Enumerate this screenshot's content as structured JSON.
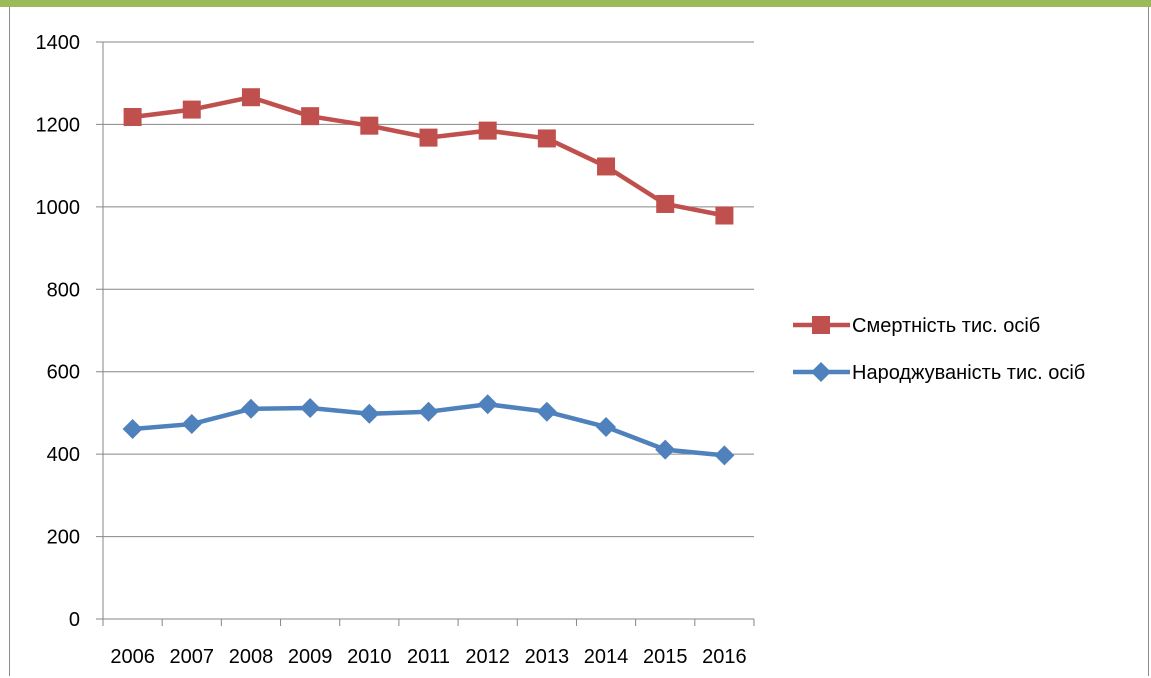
{
  "chart_data": {
    "type": "line",
    "title": "",
    "xlabel": "",
    "ylabel": "",
    "categories": [
      "2006",
      "2007",
      "2008",
      "2009",
      "2010",
      "2011",
      "2012",
      "2013",
      "2014",
      "2015",
      "2016"
    ],
    "ylim": [
      0,
      1400
    ],
    "yticks": [
      "0",
      "200",
      "400",
      "600",
      "800",
      "1000",
      "1200",
      "1400"
    ],
    "grid": true,
    "legend_position": "right",
    "series": [
      {
        "name": "Смертність тис. осіб",
        "color": "#c0504d",
        "marker": "square",
        "values": [
          1218,
          1236,
          1266,
          1220,
          1197,
          1168,
          1185,
          1166,
          1098,
          1007,
          979
        ]
      },
      {
        "name": "Народжуваність тис. осіб",
        "color": "#4f81bd",
        "marker": "diamond",
        "values": [
          461,
          473,
          510,
          512,
          498,
          503,
          521,
          503,
          466,
          411,
          397
        ]
      }
    ]
  }
}
